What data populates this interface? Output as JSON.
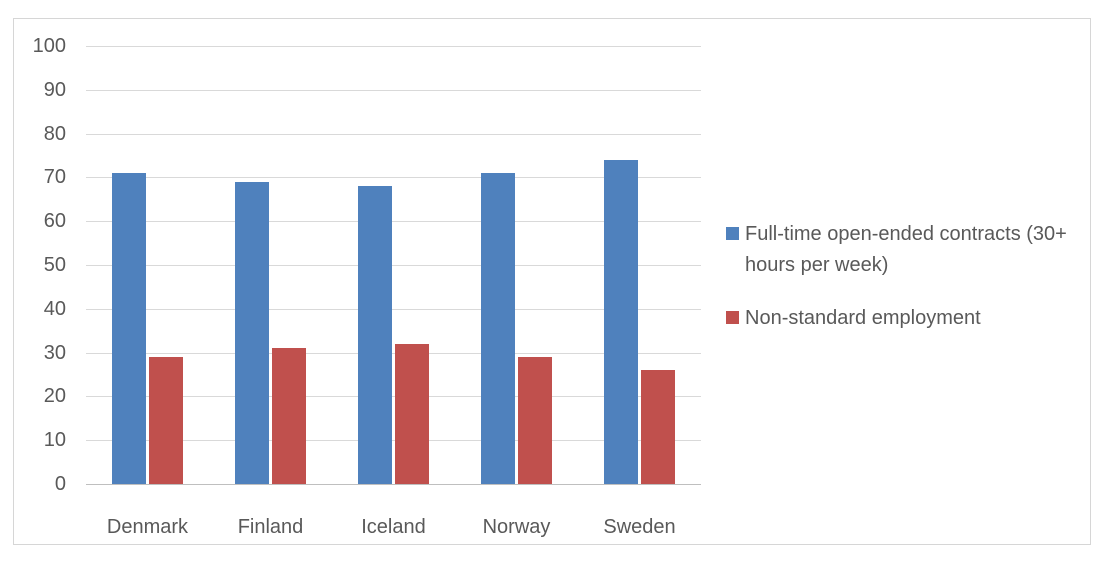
{
  "chart_data": {
    "type": "bar",
    "title": "",
    "categories": [
      "Denmark",
      "Finland",
      "Iceland",
      "Norway",
      "Sweden"
    ],
    "series": [
      {
        "name": "Full-time open-ended contracts (30+ hours per week)",
        "color": "#4F81BD",
        "values": [
          71,
          69,
          68,
          71,
          74
        ]
      },
      {
        "name": "Non-standard employment",
        "color": "#C0504D",
        "values": [
          29,
          31,
          32,
          29,
          26
        ]
      }
    ],
    "xlabel": "",
    "ylabel": "",
    "ylim": [
      0,
      100
    ],
    "y_ticks": [
      0,
      10,
      20,
      30,
      40,
      50,
      60,
      70,
      80,
      90,
      100
    ],
    "grid": "horizontal",
    "legend_position": "right"
  },
  "colors": {
    "series_blue": "#4F81BD",
    "series_red": "#C0504D",
    "gridline": "#D9D9D9",
    "baseline": "#BFBFBF",
    "axis_text": "#595959",
    "frame_border": "#D6D6D6",
    "background": "#FFFFFF"
  }
}
